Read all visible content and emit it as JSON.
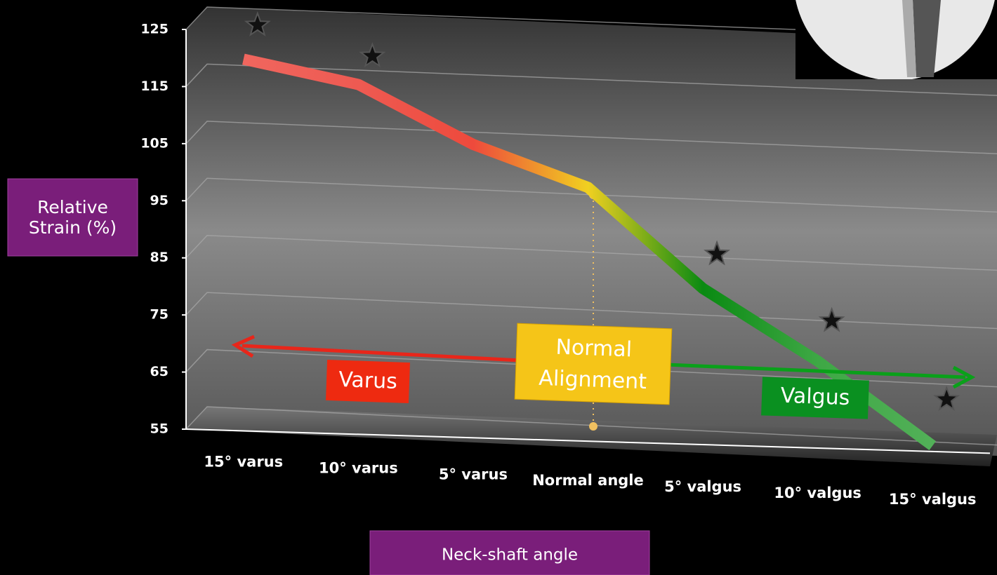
{
  "chart_data": {
    "type": "line",
    "y_label": "Relative Strain (%)",
    "x_label": "Neck-shaft angle",
    "categories": [
      "15°  varus",
      "10°  varus",
      "5°  varus",
      "Normal angle",
      "5° valgus",
      "10°  valgus",
      "15°  valgus"
    ],
    "values": [
      120,
      116,
      106,
      99,
      82,
      70,
      56
    ],
    "line_colors": [
      "#f0665e",
      "#ee5a52",
      "#ee4a3c",
      "#f0d020",
      "#0a8a12",
      "#3ea845",
      "#52b058"
    ],
    "significance_markers": [
      126,
      121,
      null,
      null,
      88,
      77,
      64
    ],
    "ylim": [
      55,
      125
    ],
    "yticks": [
      55,
      65,
      75,
      85,
      95,
      105,
      115,
      125
    ],
    "grid": true,
    "annotations": {
      "varus": "Varus",
      "normal": [
        "Normal",
        "Alignment"
      ],
      "valgus": "Valgus"
    }
  }
}
